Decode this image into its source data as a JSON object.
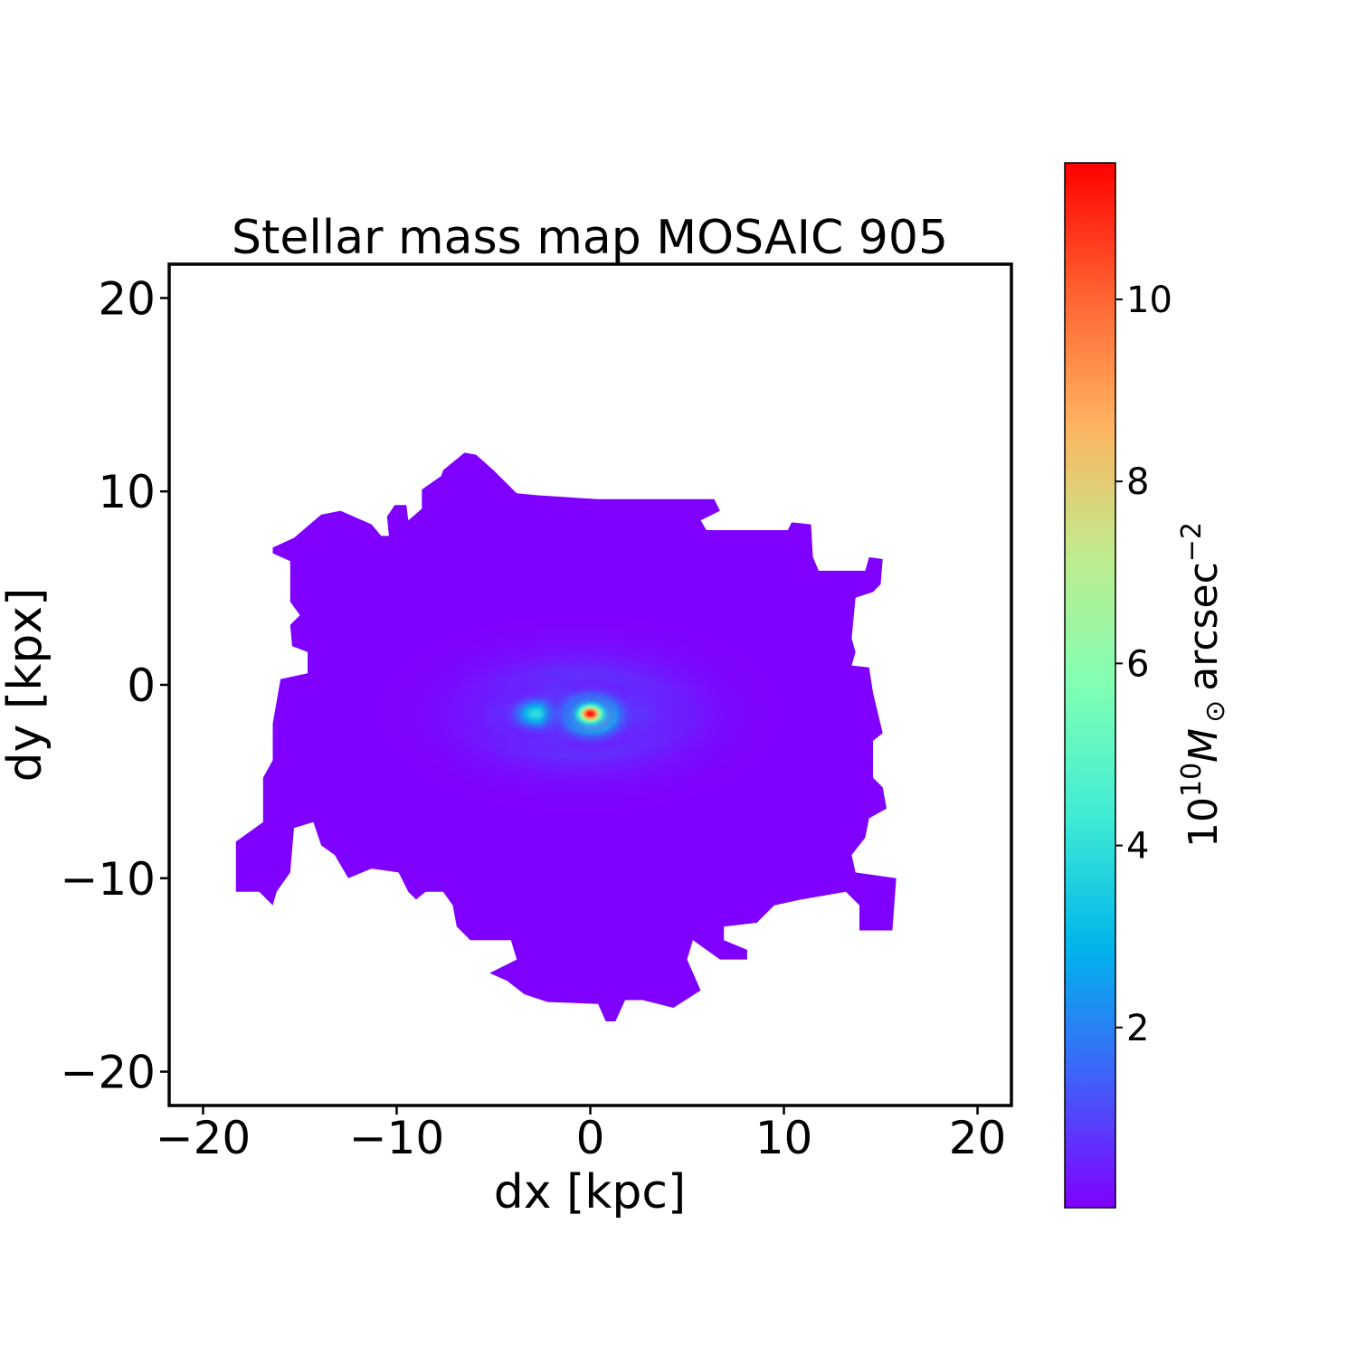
{
  "chart_data": {
    "type": "heatmap",
    "title": "Stellar mass map MOSAIC 905",
    "xlabel": "dx [kpc]",
    "ylabel": "dy [kpx]",
    "xlim": [
      -21.75,
      21.75
    ],
    "ylim": [
      -21.75,
      21.75
    ],
    "xticks": [
      -20,
      -10,
      0,
      10,
      20
    ],
    "yticks": [
      -20,
      -10,
      0,
      10,
      20
    ],
    "xtick_labels": [
      "−20",
      "−10",
      "0",
      "10",
      "20"
    ],
    "ytick_labels": [
      "−20",
      "−10",
      "0",
      "10",
      "20"
    ],
    "grid": false,
    "colormap": "rainbow",
    "colormap_stops": [
      "#8000ff",
      "#4062fa",
      "#00b5eb",
      "#40ecd4",
      "#80ffb4",
      "#c0eb8d",
      "#ffb360",
      "#ff6232",
      "#ff0000"
    ],
    "background_value_color": "#8000ff",
    "colorbar": {
      "label": "10^10 M_⊙ arcsec^-2",
      "label_parts": {
        "base": "10",
        "exp": "10",
        "sym": "M",
        "sub": "⊙",
        "unit": "arcsec",
        "unit_exp": "−2"
      },
      "range": [
        0.02,
        11.5
      ],
      "ticks": [
        2,
        4,
        6,
        8,
        10
      ],
      "tick_labels": [
        "2",
        "4",
        "6",
        "8",
        "10"
      ]
    },
    "map_boundary_kpc": [
      [
        -7.6,
        11.1
      ],
      [
        -6.5,
        12.0
      ],
      [
        -5.9,
        11.9
      ],
      [
        -5.0,
        11.1
      ],
      [
        -3.8,
        9.9
      ],
      [
        -2.7,
        9.8
      ],
      [
        0.4,
        9.6
      ],
      [
        6.4,
        9.6
      ],
      [
        6.7,
        9.0
      ],
      [
        5.7,
        8.5
      ],
      [
        6.0,
        8.0
      ],
      [
        10.2,
        8.0
      ],
      [
        10.4,
        8.4
      ],
      [
        11.4,
        8.3
      ],
      [
        11.5,
        6.6
      ],
      [
        11.8,
        5.9
      ],
      [
        14.2,
        5.9
      ],
      [
        14.4,
        6.6
      ],
      [
        15.1,
        6.5
      ],
      [
        15.0,
        5.2
      ],
      [
        14.6,
        4.8
      ],
      [
        13.7,
        4.5
      ],
      [
        13.5,
        2.4
      ],
      [
        13.7,
        1.7
      ],
      [
        13.5,
        1.0
      ],
      [
        14.4,
        0.9
      ],
      [
        14.6,
        -0.4
      ],
      [
        15.1,
        -2.5
      ],
      [
        14.6,
        -2.9
      ],
      [
        14.6,
        -4.8
      ],
      [
        15.1,
        -5.3
      ],
      [
        15.3,
        -6.4
      ],
      [
        14.4,
        -6.9
      ],
      [
        14.2,
        -7.9
      ],
      [
        13.5,
        -8.8
      ],
      [
        13.7,
        -9.7
      ],
      [
        15.8,
        -10.0
      ],
      [
        15.6,
        -12.7
      ],
      [
        13.9,
        -12.7
      ],
      [
        13.9,
        -11.4
      ],
      [
        13.2,
        -10.7
      ],
      [
        10.9,
        -11.1
      ],
      [
        9.5,
        -11.4
      ],
      [
        8.6,
        -12.3
      ],
      [
        6.9,
        -12.5
      ],
      [
        6.9,
        -13.2
      ],
      [
        8.1,
        -13.7
      ],
      [
        8.1,
        -14.2
      ],
      [
        6.7,
        -14.2
      ],
      [
        5.3,
        -13.2
      ],
      [
        5.0,
        -14.2
      ],
      [
        5.7,
        -15.8
      ],
      [
        4.3,
        -16.7
      ],
      [
        2.7,
        -16.3
      ],
      [
        1.8,
        -16.3
      ],
      [
        1.3,
        -17.4
      ],
      [
        0.8,
        -17.4
      ],
      [
        0.4,
        -16.5
      ],
      [
        -2.2,
        -16.4
      ],
      [
        -3.4,
        -16.0
      ],
      [
        -4.3,
        -15.3
      ],
      [
        -5.2,
        -14.9
      ],
      [
        -3.8,
        -14.2
      ],
      [
        -4.1,
        -13.2
      ],
      [
        -6.2,
        -13.2
      ],
      [
        -6.9,
        -12.5
      ],
      [
        -7.1,
        -11.4
      ],
      [
        -7.6,
        -10.7
      ],
      [
        -8.5,
        -10.7
      ],
      [
        -9.0,
        -11.1
      ],
      [
        -9.4,
        -10.7
      ],
      [
        -9.9,
        -9.7
      ],
      [
        -11.3,
        -9.5
      ],
      [
        -12.5,
        -10.0
      ],
      [
        -13.2,
        -8.8
      ],
      [
        -13.9,
        -8.3
      ],
      [
        -14.3,
        -7.1
      ],
      [
        -15.3,
        -7.4
      ],
      [
        -15.5,
        -9.7
      ],
      [
        -16.2,
        -10.7
      ],
      [
        -16.4,
        -11.4
      ],
      [
        -17.1,
        -10.7
      ],
      [
        -18.3,
        -10.7
      ],
      [
        -18.3,
        -8.1
      ],
      [
        -16.9,
        -7.1
      ],
      [
        -16.9,
        -4.8
      ],
      [
        -16.4,
        -3.9
      ],
      [
        -16.4,
        -2.0
      ],
      [
        -16.0,
        0.3
      ],
      [
        -14.6,
        0.6
      ],
      [
        -14.6,
        1.7
      ],
      [
        -15.4,
        2.0
      ],
      [
        -15.5,
        3.1
      ],
      [
        -15.0,
        3.6
      ],
      [
        -15.5,
        4.3
      ],
      [
        -15.5,
        6.4
      ],
      [
        -16.4,
        6.8
      ],
      [
        -16.4,
        7.1
      ],
      [
        -15.3,
        7.6
      ],
      [
        -13.9,
        8.8
      ],
      [
        -12.9,
        9.0
      ],
      [
        -11.3,
        8.3
      ],
      [
        -10.8,
        7.7
      ],
      [
        -10.4,
        7.7
      ],
      [
        -10.5,
        8.7
      ],
      [
        -10.1,
        9.3
      ],
      [
        -9.5,
        9.3
      ],
      [
        -9.4,
        8.5
      ],
      [
        -8.7,
        9.1
      ],
      [
        -8.7,
        10.1
      ],
      [
        -7.7,
        10.8
      ]
    ],
    "components": [
      {
        "center": [
          -0.5,
          -1.5
        ],
        "sigma": [
          6.5,
          3.2
        ],
        "peak": 1.5
      },
      {
        "center": [
          -1.0,
          -1.5
        ],
        "sigma": [
          3.5,
          1.2
        ],
        "peak": 3.0
      },
      {
        "center": [
          -2.8,
          -1.5
        ],
        "sigma": [
          1.2,
          0.8
        ],
        "peak": 4.0
      },
      {
        "center": [
          0.1,
          -1.6
        ],
        "sigma": [
          1.5,
          1.1
        ],
        "peak": 6.5
      },
      {
        "center": [
          0.0,
          -1.5
        ],
        "sigma": [
          0.75,
          0.55
        ],
        "peak": 11.5
      }
    ]
  }
}
